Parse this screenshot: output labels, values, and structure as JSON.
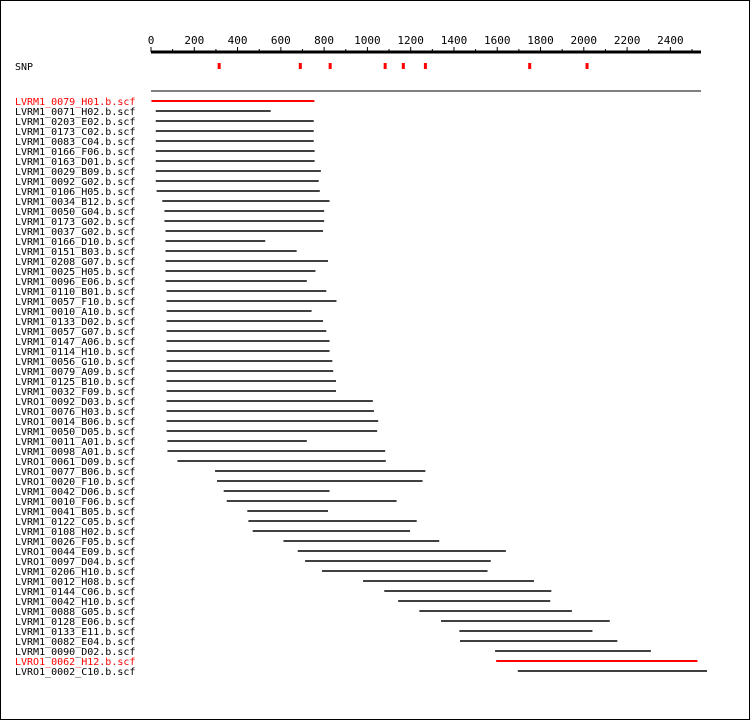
{
  "axis": {
    "ticks": [
      "0",
      "200",
      "400",
      "600",
      "800",
      "1000",
      "1200",
      "1400",
      "1600",
      "1800",
      "2000",
      "2200",
      "2400"
    ],
    "max": 2550
  },
  "snp": {
    "label": "SNP",
    "positions": [
      315,
      690,
      828,
      1082,
      1166,
      1268,
      1750,
      2015
    ],
    "color": "#ff0000"
  },
  "colors": {
    "normal": "#000000",
    "highlight": "#ff0000"
  },
  "reads": [
    {
      "name": "LVRM1_0079_H01.b.scf",
      "start": 2,
      "end": 755,
      "highlight": true
    },
    {
      "name": "LVRM1_0071_H02.b.scf",
      "start": 22,
      "end": 553,
      "highlight": false
    },
    {
      "name": "LVRM1_0203_E02.b.scf",
      "start": 22,
      "end": 752,
      "highlight": false
    },
    {
      "name": "LVRM1_0173_C02.b.scf",
      "start": 22,
      "end": 752,
      "highlight": false
    },
    {
      "name": "LVRM1_0083_C04.b.scf",
      "start": 22,
      "end": 752,
      "highlight": false
    },
    {
      "name": "LVRM1_0166_F06.b.scf",
      "start": 22,
      "end": 756,
      "highlight": false
    },
    {
      "name": "LVRM1_0163_D01.b.scf",
      "start": 22,
      "end": 756,
      "highlight": false
    },
    {
      "name": "LVRM1_0029_B09.b.scf",
      "start": 22,
      "end": 785,
      "highlight": false
    },
    {
      "name": "LVRM1_0092_G02.b.scf",
      "start": 22,
      "end": 775,
      "highlight": false
    },
    {
      "name": "LVRM1_0106_H05.b.scf",
      "start": 26,
      "end": 780,
      "highlight": false
    },
    {
      "name": "LVRM1_0034_B12.b.scf",
      "start": 52,
      "end": 825,
      "highlight": false
    },
    {
      "name": "LVRM1_0050_G04.b.scf",
      "start": 62,
      "end": 800,
      "highlight": false
    },
    {
      "name": "LVRM1_0173_G02.b.scf",
      "start": 62,
      "end": 800,
      "highlight": false
    },
    {
      "name": "LVRM1_0037_G02.b.scf",
      "start": 67,
      "end": 795,
      "highlight": false
    },
    {
      "name": "LVRM1_0166_D10.b.scf",
      "start": 67,
      "end": 528,
      "highlight": false
    },
    {
      "name": "LVRM1_0151_B03.b.scf",
      "start": 67,
      "end": 673,
      "highlight": false
    },
    {
      "name": "LVRM1_0208_G07.b.scf",
      "start": 67,
      "end": 818,
      "highlight": false
    },
    {
      "name": "LVRM1_0025_H05.b.scf",
      "start": 67,
      "end": 760,
      "highlight": false
    },
    {
      "name": "LVRM1_0096_E06.b.scf",
      "start": 67,
      "end": 720,
      "highlight": false
    },
    {
      "name": "LVRM1_0110_B01.b.scf",
      "start": 72,
      "end": 810,
      "highlight": false
    },
    {
      "name": "LVRM1_0057_F10.b.scf",
      "start": 72,
      "end": 857,
      "highlight": false
    },
    {
      "name": "LVRM1_0010_A10.b.scf",
      "start": 72,
      "end": 742,
      "highlight": false
    },
    {
      "name": "LVRM1_0133_D02.b.scf",
      "start": 72,
      "end": 795,
      "highlight": false
    },
    {
      "name": "LVRM1_0057_G07.b.scf",
      "start": 72,
      "end": 810,
      "highlight": false
    },
    {
      "name": "LVRM1_0147_A06.b.scf",
      "start": 72,
      "end": 825,
      "highlight": false
    },
    {
      "name": "LVRM1_0114_H10.b.scf",
      "start": 72,
      "end": 825,
      "highlight": false
    },
    {
      "name": "LVRM1_0056_G10.b.scf",
      "start": 72,
      "end": 838,
      "highlight": false
    },
    {
      "name": "LVRM1_0079_A09.b.scf",
      "start": 72,
      "end": 842,
      "highlight": false
    },
    {
      "name": "LVRM1_0125_B10.b.scf",
      "start": 72,
      "end": 855,
      "highlight": false
    },
    {
      "name": "LVRM1_0032_F09.b.scf",
      "start": 72,
      "end": 855,
      "highlight": false
    },
    {
      "name": "LVRO1_0092_D03.b.scf",
      "start": 72,
      "end": 1025,
      "highlight": false
    },
    {
      "name": "LVRO1_0076_H03.b.scf",
      "start": 72,
      "end": 1030,
      "highlight": false
    },
    {
      "name": "LVRO1_0014_B06.b.scf",
      "start": 72,
      "end": 1050,
      "highlight": false
    },
    {
      "name": "LVRM1_0050_D05.b.scf",
      "start": 72,
      "end": 1045,
      "highlight": false
    },
    {
      "name": "LVRM1_0011_A01.b.scf",
      "start": 76,
      "end": 720,
      "highlight": false
    },
    {
      "name": "LVRM1_0098_A01.b.scf",
      "start": 76,
      "end": 1082,
      "highlight": false
    },
    {
      "name": "LVRO1_0061_D09.b.scf",
      "start": 122,
      "end": 1085,
      "highlight": false
    },
    {
      "name": "LVRO1_0077_B06.b.scf",
      "start": 296,
      "end": 1268,
      "highlight": false
    },
    {
      "name": "LVRO1_0020_F10.b.scf",
      "start": 305,
      "end": 1255,
      "highlight": false
    },
    {
      "name": "LVRM1_0042_D06.b.scf",
      "start": 336,
      "end": 825,
      "highlight": false
    },
    {
      "name": "LVRM1_0010_F06.b.scf",
      "start": 350,
      "end": 1135,
      "highlight": false
    },
    {
      "name": "LVRM1_0041_B05.b.scf",
      "start": 445,
      "end": 818,
      "highlight": false
    },
    {
      "name": "LVRM1_0122_C05.b.scf",
      "start": 450,
      "end": 1228,
      "highlight": false
    },
    {
      "name": "LVRM1_0108_H02.b.scf",
      "start": 470,
      "end": 1197,
      "highlight": false
    },
    {
      "name": "LVRM1_0026_F05.b.scf",
      "start": 612,
      "end": 1332,
      "highlight": false
    },
    {
      "name": "LVRO1_0044_E09.b.scf",
      "start": 678,
      "end": 1640,
      "highlight": false
    },
    {
      "name": "LVRO1_0097_D04.b.scf",
      "start": 712,
      "end": 1570,
      "highlight": false
    },
    {
      "name": "LVRM1_0206_H10.b.scf",
      "start": 790,
      "end": 1555,
      "highlight": false
    },
    {
      "name": "LVRM1_0012_H08.b.scf",
      "start": 980,
      "end": 1770,
      "highlight": false
    },
    {
      "name": "LVRM1_0144_C06.b.scf",
      "start": 1078,
      "end": 1850,
      "highlight": false
    },
    {
      "name": "LVRM1_0042_H10.b.scf",
      "start": 1142,
      "end": 1845,
      "highlight": false
    },
    {
      "name": "LVRM1_0088_G05.b.scf",
      "start": 1240,
      "end": 1945,
      "highlight": false
    },
    {
      "name": "LVRM1_0128_E06.b.scf",
      "start": 1340,
      "end": 2120,
      "highlight": false
    },
    {
      "name": "LVRM1_0133_E11.b.scf",
      "start": 1425,
      "end": 2040,
      "highlight": false
    },
    {
      "name": "LVRM1_0082_E04.b.scf",
      "start": 1428,
      "end": 2155,
      "highlight": false
    },
    {
      "name": "LVRM1_0090_D02.b.scf",
      "start": 1590,
      "end": 2310,
      "highlight": false
    },
    {
      "name": "LVRO1_0062_H12.b.scf",
      "start": 1595,
      "end": 2525,
      "highlight": true
    },
    {
      "name": "LVRO1_0002_C10.b.scf",
      "start": 1695,
      "end": 2575,
      "highlight": false
    }
  ]
}
